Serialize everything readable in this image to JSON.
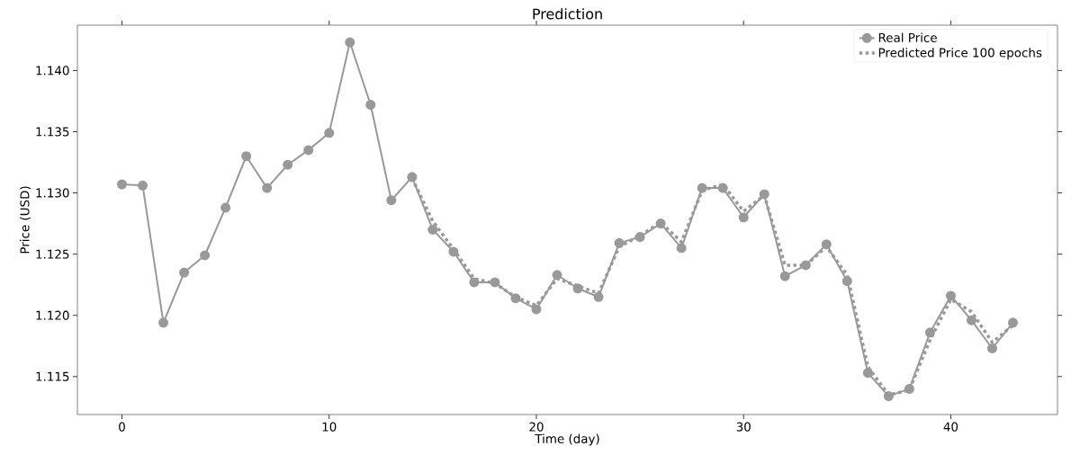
{
  "chart_data": {
    "type": "line",
    "title": "Prediction",
    "xlabel": "Time (day)",
    "ylabel": "Price (USD)",
    "xlim": [
      -2.15,
      45.15
    ],
    "ylim": [
      1.1119,
      1.1437
    ],
    "xticks": [
      0,
      10,
      20,
      30,
      40
    ],
    "yticks": [
      1.115,
      {
        "value": 1.12,
        "label": "1.120"
      },
      1.125,
      {
        "value": 1.13,
        "label": "1.130"
      },
      1.135,
      {
        "value": 1.14,
        "label": "1.140"
      }
    ],
    "legend": "top right",
    "grid": false,
    "series": [
      {
        "name": "Real Price",
        "color": "#999999",
        "marker": "circle",
        "line_style": "solid",
        "x": [
          0,
          1,
          2,
          3,
          4,
          5,
          6,
          7,
          8,
          9,
          10,
          11,
          12,
          13,
          14,
          15,
          16,
          17,
          18,
          19,
          20,
          21,
          22,
          23,
          24,
          25,
          26,
          27,
          28,
          29,
          30,
          31,
          32,
          33,
          34,
          35,
          36,
          37,
          38,
          39,
          40,
          41,
          42,
          43
        ],
        "values": [
          1.1307,
          1.1306,
          1.1194,
          1.1235,
          1.1249,
          1.1288,
          1.133,
          1.1304,
          1.1323,
          1.1335,
          1.1349,
          1.1423,
          1.1372,
          1.1294,
          1.1313,
          1.127,
          1.1252,
          1.1227,
          1.1227,
          1.1214,
          1.1205,
          1.1233,
          1.1222,
          1.1215,
          1.1259,
          1.1264,
          1.1275,
          1.1255,
          1.1304,
          1.1304,
          1.128,
          1.1299,
          1.1232,
          1.1241,
          1.1258,
          1.1228,
          1.1153,
          1.1134,
          1.114,
          1.1186,
          1.1216,
          1.1196,
          1.1173,
          1.1194
        ]
      },
      {
        "name": "Predicted Price 100 epochs",
        "color": "#999999",
        "marker": "none",
        "line_style": "dotted",
        "x": [
          14,
          15,
          16,
          17,
          18,
          19,
          20,
          21,
          22,
          23,
          24,
          25,
          26,
          27,
          28,
          29,
          30,
          31,
          32,
          33,
          34,
          35,
          36,
          37,
          38,
          39,
          40,
          41,
          42,
          43
        ],
        "values": [
          1.1312,
          1.1277,
          1.1254,
          1.123,
          1.1226,
          1.1215,
          1.1208,
          1.123,
          1.1224,
          1.1218,
          1.1256,
          1.1265,
          1.1276,
          1.126,
          1.1302,
          1.1307,
          1.1285,
          1.1298,
          1.1241,
          1.1241,
          1.1256,
          1.1233,
          1.1158,
          1.1135,
          1.1139,
          1.118,
          1.1213,
          1.1203,
          1.1178,
          1.1192
        ]
      }
    ]
  }
}
